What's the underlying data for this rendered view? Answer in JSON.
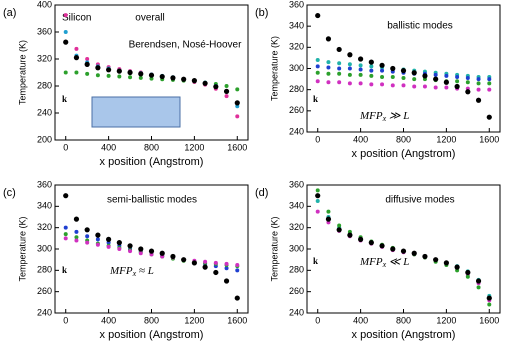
{
  "chart_data": [
    {
      "type": "scatter",
      "panel": "(a)",
      "annotations": [
        "Silicon",
        "overall",
        "Berendsen, Nosé-Hoover"
      ],
      "k_label": "k",
      "xlabel": "x position (Angstrom)",
      "ylabel": "Temperature (K)",
      "xlim": [
        -100,
        1700
      ],
      "xticks": [
        0,
        400,
        800,
        1200,
        1600
      ],
      "ylim": [
        200,
        400
      ],
      "yticks": [
        200,
        240,
        280,
        320,
        360,
        400
      ],
      "x": [
        0,
        100,
        200,
        300,
        400,
        500,
        600,
        700,
        800,
        900,
        1000,
        1100,
        1200,
        1300,
        1400,
        1500,
        1600
      ],
      "series": [
        {
          "color": "#e0309a",
          "values": [
            385,
            335,
            320,
            312,
            308,
            305,
            302,
            300,
            297,
            294,
            292,
            289,
            286,
            282,
            276,
            265,
            235
          ]
        },
        {
          "color": "#2ca02c",
          "values": [
            300,
            300,
            298,
            296,
            295,
            294,
            293,
            292,
            291,
            290,
            289,
            288,
            287,
            285,
            283,
            280,
            275
          ]
        },
        {
          "color": "#1f9fd0",
          "values": [
            360,
            325,
            315,
            309,
            306,
            303,
            301,
            299,
            297,
            295,
            293,
            290,
            288,
            285,
            280,
            272,
            250
          ]
        },
        {
          "color": "#000000",
          "values": [
            345,
            322,
            312,
            307,
            304,
            302,
            300,
            298,
            296,
            294,
            292,
            290,
            288,
            284,
            279,
            272,
            255
          ]
        }
      ]
    },
    {
      "type": "scatter",
      "panel": "(b)",
      "annotations": [
        "ballistic modes"
      ],
      "k_label": "k",
      "math": {
        "base": "MFP",
        "sub": "x",
        "rest": " ≫ L"
      },
      "xlabel": "x position (Angstrom)",
      "ylabel": "Temperature (K)",
      "xlim": [
        -100,
        1700
      ],
      "xticks": [
        0,
        400,
        800,
        1200,
        1600
      ],
      "ylim": [
        240,
        360
      ],
      "yticks": [
        240,
        260,
        280,
        300,
        320,
        340,
        360
      ],
      "x": [
        0,
        100,
        200,
        300,
        400,
        500,
        600,
        700,
        800,
        900,
        1000,
        1100,
        1200,
        1300,
        1400,
        1500,
        1600
      ],
      "series": [
        {
          "color": "#20b2aa",
          "values": [
            308,
            306,
            305,
            304,
            303,
            302,
            301,
            300,
            299,
            298,
            297,
            296,
            295,
            294,
            293,
            292,
            292
          ]
        },
        {
          "color": "#1f3fd0",
          "values": [
            302,
            301,
            300,
            300,
            299,
            298,
            298,
            297,
            296,
            295,
            295,
            294,
            293,
            292,
            291,
            290,
            290
          ]
        },
        {
          "color": "#2ca02c",
          "values": [
            296,
            295,
            295,
            294,
            294,
            293,
            292,
            292,
            291,
            290,
            290,
            289,
            288,
            288,
            287,
            286,
            286
          ]
        },
        {
          "color": "#d030c0",
          "values": [
            288,
            287,
            287,
            286,
            286,
            285,
            285,
            284,
            284,
            283,
            283,
            282,
            282,
            281,
            281,
            280,
            280
          ]
        },
        {
          "color": "#000000",
          "values": [
            350,
            328,
            318,
            313,
            309,
            306,
            303,
            300,
            298,
            296,
            293,
            290,
            287,
            283,
            278,
            270,
            254
          ]
        }
      ]
    },
    {
      "type": "scatter",
      "panel": "(c)",
      "annotations": [
        "semi-ballistic modes"
      ],
      "k_label": "k",
      "math": {
        "base": "MFP",
        "sub": "x",
        "rest": " ≈ L"
      },
      "xlabel": "x position (Angstrom)",
      "ylabel": "Temperature (K)",
      "xlim": [
        -100,
        1700
      ],
      "xticks": [
        0,
        400,
        800,
        1200,
        1600
      ],
      "ylim": [
        240,
        360
      ],
      "yticks": [
        240,
        260,
        280,
        300,
        320,
        340,
        360
      ],
      "x": [
        0,
        100,
        200,
        300,
        400,
        500,
        600,
        700,
        800,
        900,
        1000,
        1100,
        1200,
        1300,
        1400,
        1500,
        1600
      ],
      "series": [
        {
          "color": "#1f3fd0",
          "values": [
            320,
            316,
            312,
            309,
            306,
            303,
            300,
            298,
            296,
            294,
            292,
            290,
            288,
            286,
            284,
            282,
            280
          ]
        },
        {
          "color": "#2ca02c",
          "values": [
            314,
            311,
            308,
            305,
            303,
            301,
            299,
            297,
            295,
            293,
            291,
            289,
            288,
            287,
            286,
            285,
            284
          ]
        },
        {
          "color": "#d030c0",
          "values": [
            310,
            308,
            306,
            304,
            302,
            300,
            298,
            296,
            295,
            293,
            292,
            290,
            289,
            288,
            287,
            286,
            285
          ]
        },
        {
          "color": "#000000",
          "values": [
            350,
            328,
            318,
            313,
            309,
            306,
            303,
            300,
            298,
            296,
            293,
            290,
            287,
            283,
            278,
            270,
            254
          ]
        }
      ]
    },
    {
      "type": "scatter",
      "panel": "(d)",
      "annotations": [
        "diffusive modes"
      ],
      "k_label": "k",
      "math": {
        "base": "MFP",
        "sub": "x",
        "rest": " ≪ L"
      },
      "xlabel": "x position (Angstrom)",
      "ylabel": "Temperature (K)",
      "xlim": [
        -100,
        1700
      ],
      "xticks": [
        0,
        400,
        800,
        1200,
        1600
      ],
      "ylim": [
        240,
        360
      ],
      "yticks": [
        240,
        260,
        280,
        300,
        320,
        340,
        360
      ],
      "x": [
        0,
        100,
        200,
        300,
        400,
        500,
        600,
        700,
        800,
        900,
        1000,
        1100,
        1200,
        1300,
        1400,
        1500,
        1600
      ],
      "series": [
        {
          "color": "#20b2aa",
          "values": [
            345,
            330,
            320,
            314,
            310,
            306,
            303,
            300,
            298,
            296,
            293,
            290,
            287,
            284,
            279,
            271,
            256
          ]
        },
        {
          "color": "#d030c0",
          "values": [
            335,
            325,
            317,
            312,
            308,
            305,
            302,
            299,
            297,
            295,
            292,
            289,
            286,
            282,
            276,
            268,
            252
          ]
        },
        {
          "color": "#2ca02c",
          "values": [
            355,
            335,
            322,
            316,
            311,
            307,
            304,
            301,
            298,
            295,
            292,
            288,
            285,
            280,
            274,
            264,
            248
          ]
        },
        {
          "color": "#000000",
          "values": [
            350,
            328,
            318,
            313,
            309,
            306,
            303,
            300,
            298,
            296,
            293,
            290,
            287,
            283,
            278,
            270,
            254
          ]
        }
      ]
    }
  ]
}
